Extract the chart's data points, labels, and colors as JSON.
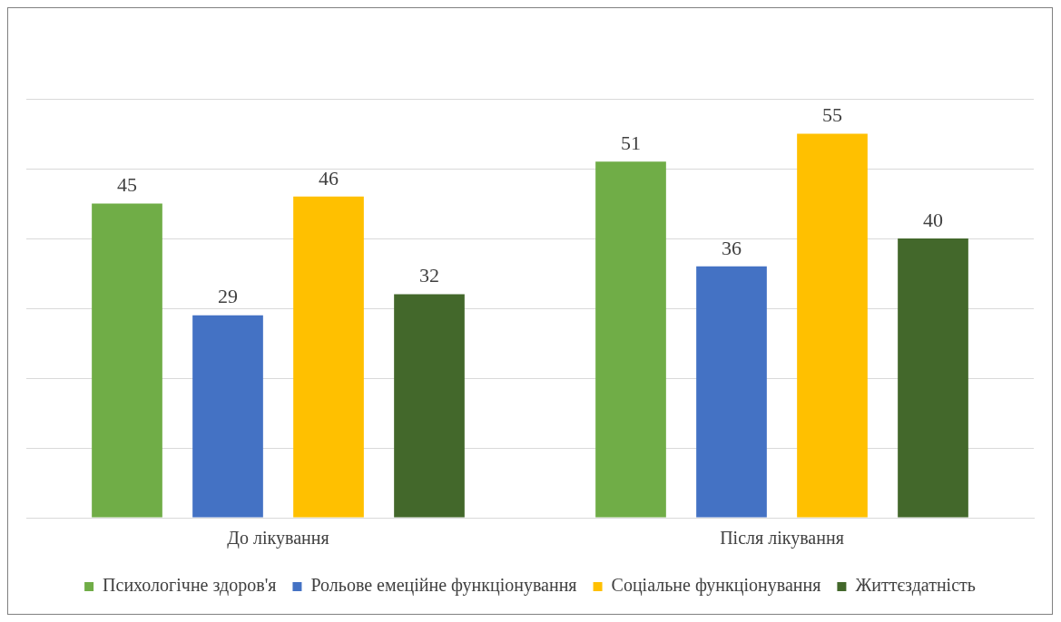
{
  "chart_data": {
    "type": "bar",
    "categories": [
      "До лікування",
      "Після лікування"
    ],
    "series": [
      {
        "name": "Психологічне здоров'я",
        "color": "#70ad47",
        "values": [
          45,
          51
        ]
      },
      {
        "name": "Рольове емеційне функціонування",
        "color": "#4472c4",
        "values": [
          29,
          36
        ]
      },
      {
        "name": "Соціальне функціонування",
        "color": "#ffc000",
        "values": [
          46,
          55
        ]
      },
      {
        "name": "Життєздатність",
        "color": "#43682b",
        "values": [
          32,
          40
        ]
      }
    ],
    "ylim": [
      0,
      60
    ],
    "yticks": [
      0,
      10,
      20,
      30,
      40,
      50,
      60
    ],
    "tick_labels": "x",
    "grid": "y",
    "data_labels": true,
    "legend": "bottom"
  }
}
